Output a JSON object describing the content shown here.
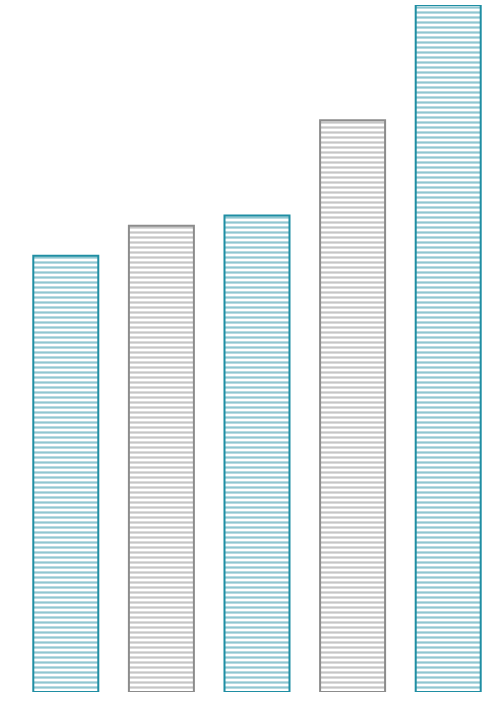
{
  "chart_data": {
    "type": "bar",
    "categories": [
      null,
      null,
      null,
      null,
      null
    ],
    "values": [
      435,
      465,
      475,
      570,
      685
    ],
    "colors": [
      "#1f8ea3",
      "#8c8c8c",
      "#1f8ea3",
      "#8c8c8c",
      "#1f8ea3"
    ],
    "grid": false,
    "tick_labels": false
  }
}
